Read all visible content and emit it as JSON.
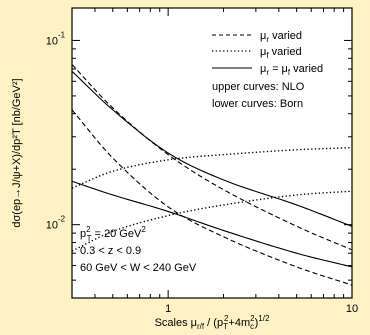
{
  "figure": {
    "background_color": "#fff3c6",
    "panel_color": "#ffffff",
    "line_color": "#000000"
  },
  "chart_data": {
    "type": "line",
    "xlabel": {
      "prefix": "Scales μ",
      "sub1": "r/f",
      "mid": " / (p",
      "sub2": "T",
      "sup2": "2",
      "mid2": "+4m",
      "sub3": "c",
      "sup3": "2",
      "suffix": ")",
      "sup4": "1/2"
    },
    "ylabel": "dσ(ep→J/ψ+X)/dp²T [nb/GeV²]",
    "x_scale": "log",
    "y_scale": "log",
    "xlim": [
      0.3,
      10
    ],
    "ylim": [
      0.004,
      0.15
    ],
    "x_ticks": [
      {
        "value": 1,
        "label": "1"
      },
      {
        "value": 10,
        "label": "10"
      }
    ],
    "y_ticks": [
      {
        "value": 0.01,
        "label": "10",
        "exp": "-2"
      },
      {
        "value": 0.1,
        "label": "10",
        "exp": "-1"
      }
    ],
    "legend": {
      "placement": "top-right",
      "entries": [
        {
          "style": "dashed",
          "label_prefix": "μ",
          "label_sub": "r",
          "label_suffix": " varied"
        },
        {
          "style": "dotted",
          "label_prefix": "μ",
          "label_sub": "f",
          "label_suffix": " varied"
        },
        {
          "style": "solid",
          "label_prefix": "μ",
          "label_sub": "r",
          "label_mid": " = μ",
          "label_sub2": "f",
          "label_suffix": " varied"
        }
      ],
      "notes": [
        "upper curves: NLO",
        "lower curves: Born"
      ]
    },
    "annotations": {
      "pt2": {
        "prefix": "p",
        "sub": "T",
        "sup": "2",
        "value": " = 20 GeV",
        "unit_sup": "2"
      },
      "z_range": "0.3 < z < 0.9",
      "w_range": "60 GeV < W < 240 GeV"
    },
    "series": [
      {
        "style": "dashed",
        "group": "NLO",
        "x": [
          0.3,
          0.5,
          1,
          2,
          5,
          10
        ],
        "y": [
          0.074,
          0.043,
          0.024,
          0.0155,
          0.0098,
          0.0073
        ]
      },
      {
        "style": "dashed",
        "group": "Born",
        "x": [
          0.3,
          0.5,
          1,
          2,
          5,
          10
        ],
        "y": [
          0.042,
          0.023,
          0.0125,
          0.0086,
          0.0059,
          0.0047
        ]
      },
      {
        "style": "dotted",
        "group": "NLO",
        "x": [
          0.3,
          0.5,
          1,
          2,
          5,
          10
        ],
        "y": [
          0.0158,
          0.0195,
          0.0225,
          0.024,
          0.0255,
          0.0262
        ]
      },
      {
        "style": "dotted",
        "group": "Born",
        "x": [
          0.3,
          0.5,
          1,
          2,
          5,
          10
        ],
        "y": [
          0.0072,
          0.0092,
          0.0112,
          0.0128,
          0.0145,
          0.0152
        ]
      },
      {
        "style": "solid",
        "group": "NLO",
        "x": [
          0.3,
          0.5,
          1,
          2,
          5,
          10
        ],
        "y": [
          0.068,
          0.042,
          0.0245,
          0.0175,
          0.0128,
          0.0098
        ]
      },
      {
        "style": "solid",
        "group": "Born",
        "x": [
          0.3,
          0.5,
          1,
          2,
          5,
          10
        ],
        "y": [
          0.0172,
          0.0145,
          0.0118,
          0.0093,
          0.007,
          0.0059
        ]
      }
    ]
  }
}
